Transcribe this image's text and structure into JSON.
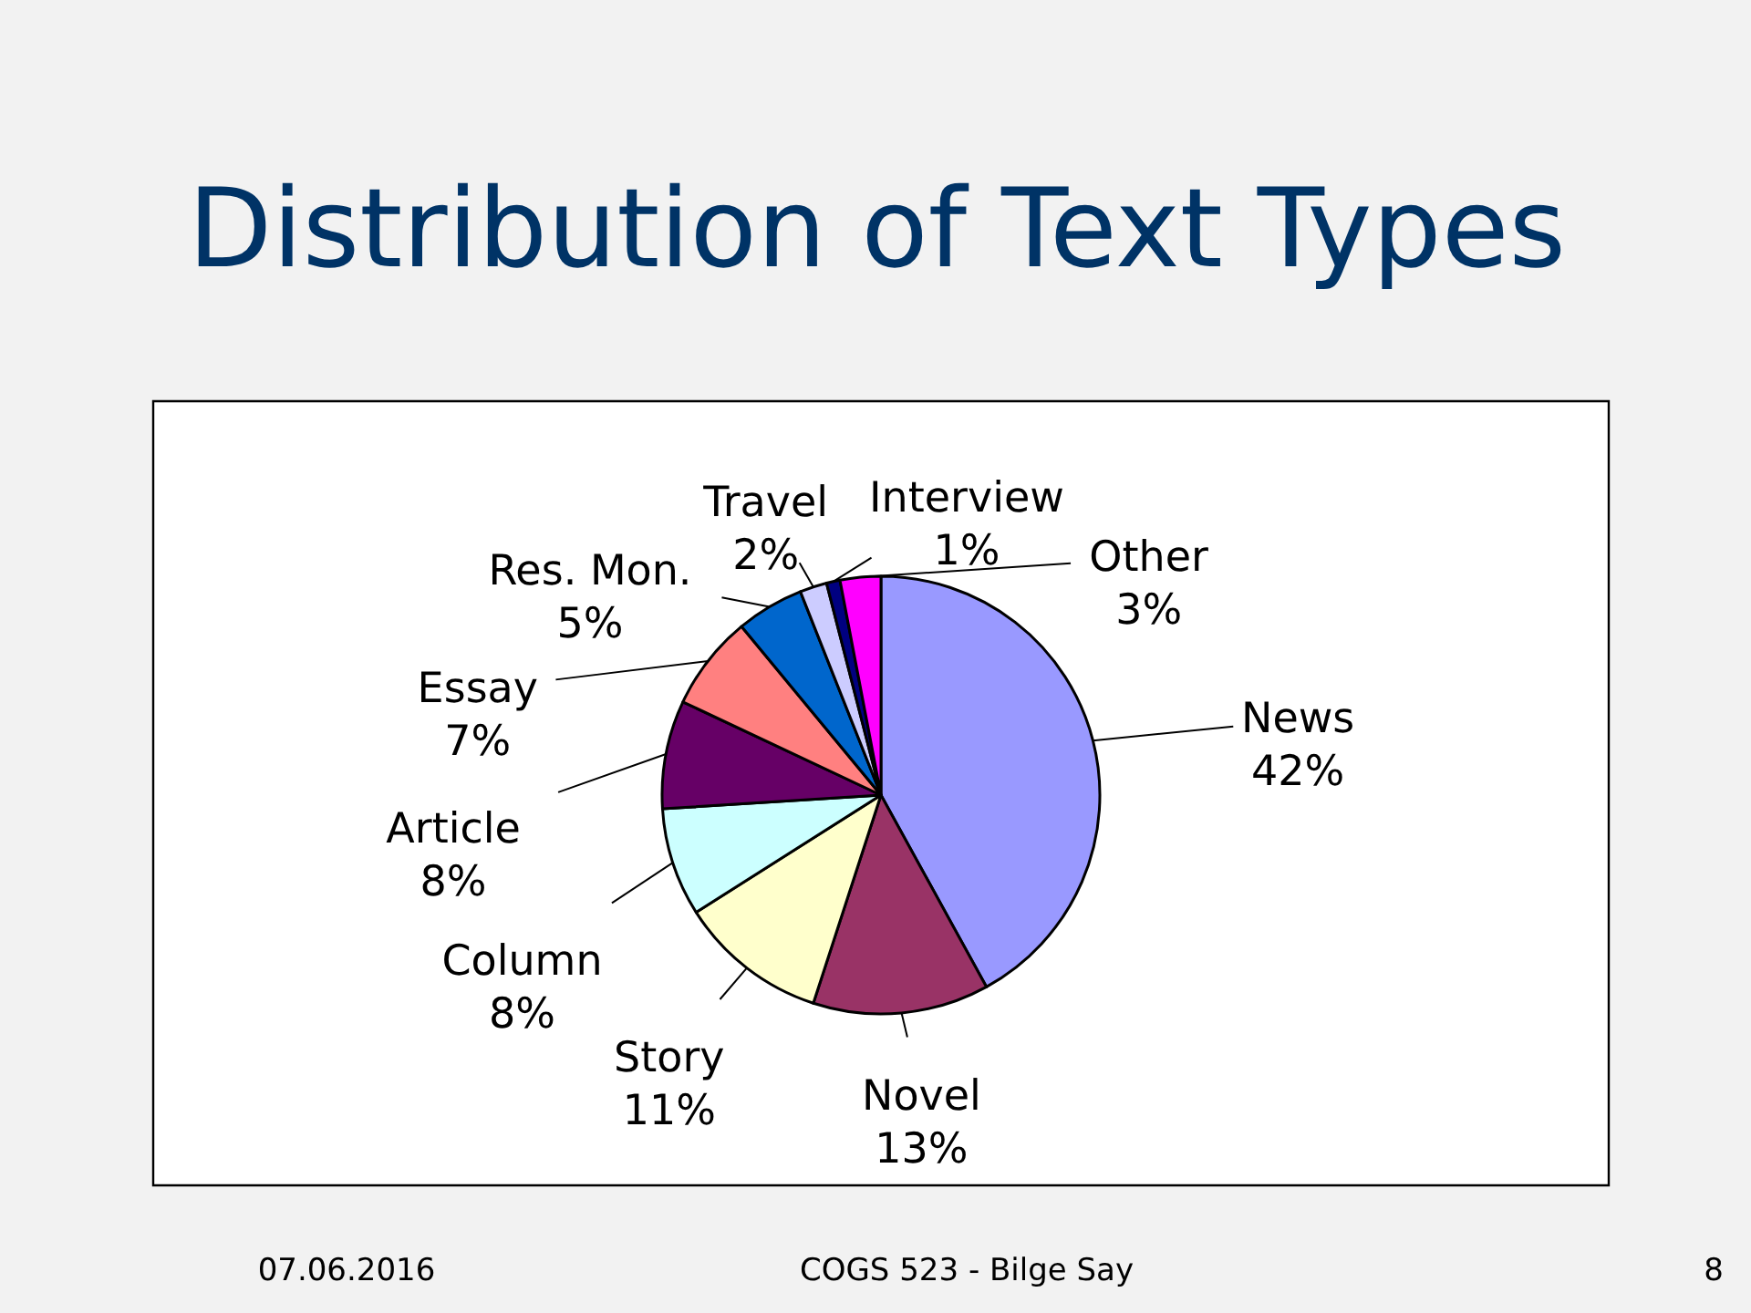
{
  "chart_data": {
    "type": "pie",
    "title": "Distribution of Text Types",
    "categories": [
      "News",
      "Novel",
      "Story",
      "Column",
      "Article",
      "Essay",
      "Res. Mon.",
      "Travel",
      "Interview",
      "Other"
    ],
    "values": [
      42,
      13,
      11,
      8,
      8,
      7,
      5,
      2,
      1,
      3
    ],
    "colors": [
      "#9999ff",
      "#993366",
      "#ffffcc",
      "#ccffff",
      "#660066",
      "#ff8080",
      "#0066cc",
      "#ccccff",
      "#000080",
      "#ff00ff"
    ],
    "value_labels": [
      "42%",
      "13%",
      "11%",
      "8%",
      "8%",
      "7%",
      "5%",
      "2%",
      "1%",
      "3%"
    ],
    "annotations": [
      "07.06.2016",
      "COGS 523 - Bilge Say",
      "8"
    ]
  }
}
